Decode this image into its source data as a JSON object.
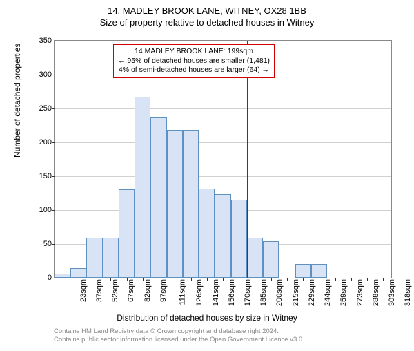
{
  "title": "14, MADLEY BROOK LANE, WITNEY, OX28 1BB",
  "subtitle": "Size of property relative to detached houses in Witney",
  "ylabel": "Number of detached properties",
  "xlabel": "Distribution of detached houses by size in Witney",
  "footer_line1": "Contains HM Land Registry data © Crown copyright and database right 2024.",
  "footer_line2": "Contains public sector information licensed under the Open Government Licence v3.0.",
  "chart": {
    "type": "histogram",
    "ylim": [
      0,
      350
    ],
    "ytick_step": 50,
    "yticks": [
      0,
      50,
      100,
      150,
      200,
      250,
      300,
      350
    ],
    "bar_fill": "#d8e4f5",
    "bar_border": "#6090c0",
    "background": "#ffffff",
    "grid_color": "#d0d0d0",
    "border_color": "#888888",
    "vline_color": "#d00000",
    "vline_x_index": 12.0,
    "annotation": {
      "line1": "14 MADLEY BROOK LANE: 199sqm",
      "line2": "← 95% of detached houses are smaller (1,481)",
      "line3": "4% of semi-detached houses are larger (64) →",
      "border_color": "#d00000",
      "fontsize": 10.5
    },
    "title_fontsize": 13,
    "label_fontsize": 12,
    "tick_fontsize": 11,
    "categories": [
      "23sqm",
      "37sqm",
      "52sqm",
      "67sqm",
      "82sqm",
      "97sqm",
      "111sqm",
      "126sqm",
      "141sqm",
      "156sqm",
      "170sqm",
      "185sqm",
      "200sqm",
      "215sqm",
      "229sqm",
      "244sqm",
      "259sqm",
      "273sqm",
      "288sqm",
      "303sqm",
      "318sqm"
    ],
    "values": [
      6,
      14,
      59,
      59,
      131,
      267,
      237,
      218,
      218,
      132,
      123,
      115,
      59,
      54,
      0,
      20,
      20,
      0,
      0,
      0,
      0
    ]
  }
}
